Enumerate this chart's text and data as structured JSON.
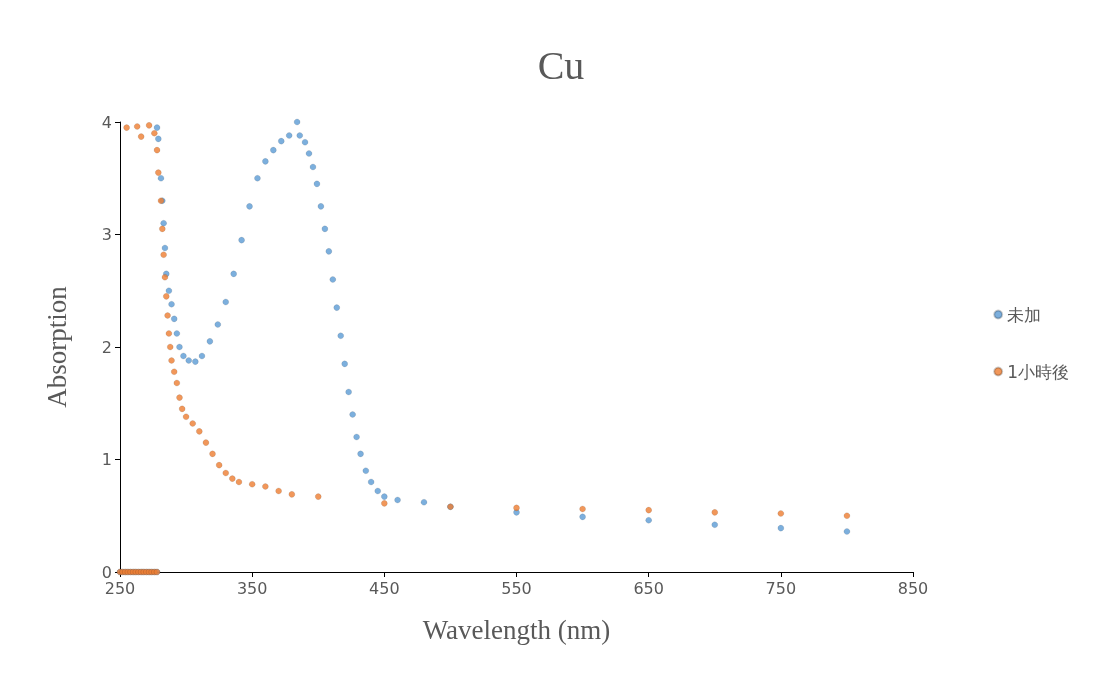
{
  "chart_data": {
    "type": "scatter",
    "title": "Cu",
    "xlabel": "Wavelength (nm)",
    "ylabel": "Absorption",
    "xlim": [
      250,
      850
    ],
    "xticks": [
      250,
      350,
      450,
      550,
      650,
      750,
      850
    ],
    "ylim": [
      0,
      4
    ],
    "yticks": [
      0,
      1,
      2,
      3,
      4
    ],
    "grid": false,
    "legend": "right",
    "marker": "circle",
    "series": [
      {
        "name": "未加",
        "color": "#5b9bd5",
        "x": [
          250,
          252,
          254,
          256,
          258,
          260,
          262,
          264,
          266,
          268,
          270,
          272,
          274,
          276,
          278,
          278,
          279,
          281,
          282,
          283,
          284,
          285,
          287,
          289,
          291,
          293,
          295,
          298,
          302,
          307,
          312,
          318,
          324,
          330,
          336,
          342,
          348,
          354,
          360,
          366,
          372,
          378,
          384,
          386,
          390,
          393,
          396,
          399,
          402,
          405,
          408,
          411,
          414,
          417,
          420,
          423,
          426,
          429,
          432,
          436,
          440,
          445,
          450,
          460,
          480,
          500,
          550,
          600,
          650,
          700,
          750,
          800
        ],
        "values": [
          0,
          0,
          0,
          0,
          0,
          0,
          0,
          0,
          0,
          0,
          0,
          0,
          0,
          0,
          0,
          3.95,
          3.85,
          3.5,
          3.3,
          3.1,
          2.88,
          2.65,
          2.5,
          2.38,
          2.25,
          2.12,
          2.0,
          1.92,
          1.88,
          1.87,
          1.92,
          2.05,
          2.2,
          2.4,
          2.65,
          2.95,
          3.25,
          3.5,
          3.65,
          3.75,
          3.83,
          3.88,
          4.0,
          3.88,
          3.82,
          3.72,
          3.6,
          3.45,
          3.25,
          3.05,
          2.85,
          2.6,
          2.35,
          2.1,
          1.85,
          1.6,
          1.4,
          1.2,
          1.05,
          0.9,
          0.8,
          0.72,
          0.67,
          0.64,
          0.62,
          0.58,
          0.53,
          0.49,
          0.46,
          0.42,
          0.39,
          0.36
        ]
      },
      {
        "name": "1小時後",
        "color": "#ed7d31",
        "x": [
          250,
          252,
          254,
          256,
          258,
          260,
          262,
          264,
          266,
          268,
          270,
          272,
          274,
          276,
          278,
          255,
          263,
          266,
          272,
          276,
          278,
          279,
          281,
          282,
          283,
          284,
          285,
          286,
          287,
          288,
          289,
          291,
          293,
          295,
          297,
          300,
          305,
          310,
          315,
          320,
          325,
          330,
          335,
          340,
          350,
          360,
          370,
          380,
          400,
          450,
          500,
          550,
          600,
          650,
          700,
          750,
          800
        ],
        "values": [
          0,
          0,
          0,
          0,
          0,
          0,
          0,
          0,
          0,
          0,
          0,
          0,
          0,
          0,
          0,
          3.95,
          3.96,
          3.87,
          3.97,
          3.9,
          3.75,
          3.55,
          3.3,
          3.05,
          2.82,
          2.62,
          2.45,
          2.28,
          2.12,
          2.0,
          1.88,
          1.78,
          1.68,
          1.55,
          1.45,
          1.38,
          1.32,
          1.25,
          1.15,
          1.05,
          0.95,
          0.88,
          0.83,
          0.8,
          0.78,
          0.76,
          0.72,
          0.69,
          0.67,
          0.61,
          0.58,
          0.57,
          0.56,
          0.55,
          0.53,
          0.52,
          0.5
        ]
      }
    ]
  }
}
